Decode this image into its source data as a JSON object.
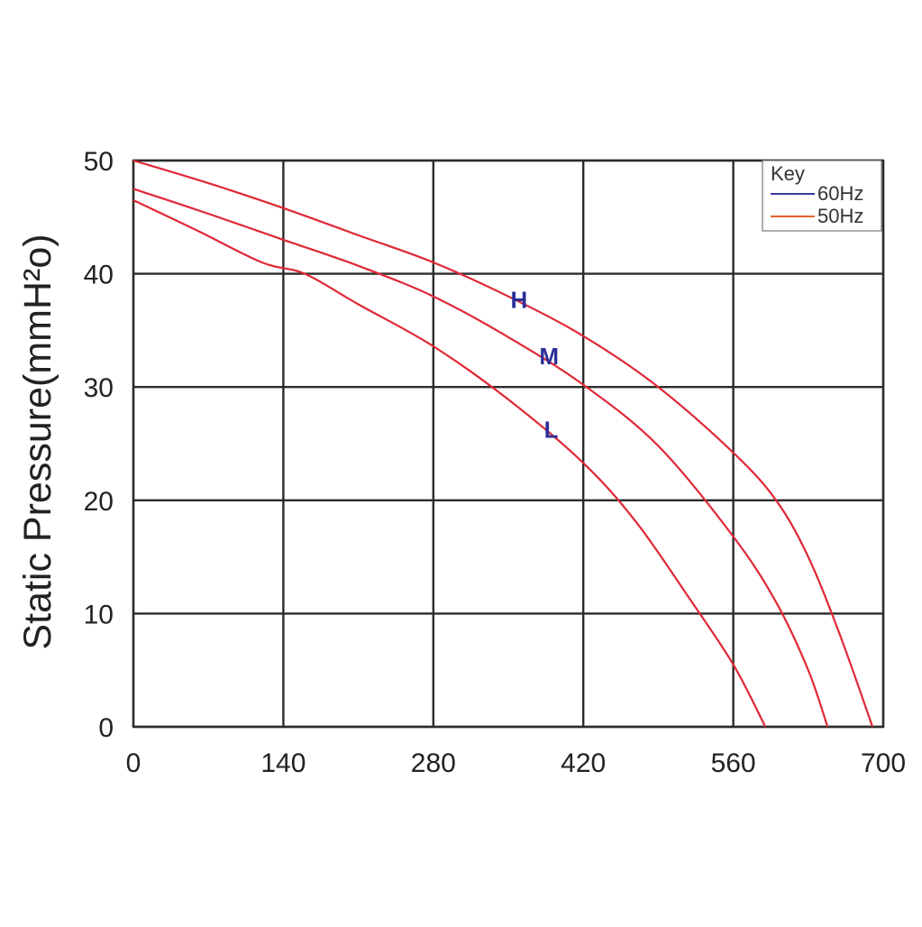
{
  "chart_data": {
    "type": "line",
    "title": "",
    "xlabel": "",
    "ylabel": "Static Pressure(mmH²o)",
    "xlim": [
      0,
      700
    ],
    "ylim": [
      0,
      50
    ],
    "x_ticks": [
      0,
      140,
      280,
      420,
      560,
      700
    ],
    "y_ticks": [
      0,
      10,
      20,
      30,
      40,
      50
    ],
    "grid": true,
    "legend": {
      "title": "Key",
      "placement": "top-right",
      "entries": [
        {
          "name": "60Hz",
          "color": "#3a3a9c"
        },
        {
          "name": "50Hz",
          "color": "#e8622c"
        }
      ]
    },
    "series": [
      {
        "name": "H",
        "color": "#e02836",
        "label_color": "#2e2e99",
        "label_at": [
          360,
          37
        ],
        "points": [
          [
            0,
            50
          ],
          [
            70,
            48
          ],
          [
            140,
            45.8
          ],
          [
            210,
            43.4
          ],
          [
            280,
            41
          ],
          [
            350,
            38
          ],
          [
            420,
            34.5
          ],
          [
            490,
            30
          ],
          [
            560,
            24.2
          ],
          [
            600,
            20
          ],
          [
            630,
            15
          ],
          [
            660,
            8
          ],
          [
            690,
            0
          ]
        ]
      },
      {
        "name": "M",
        "color": "#e02836",
        "label_color": "#2e2e99",
        "label_at": [
          388,
          32
        ],
        "points": [
          [
            0,
            47.5
          ],
          [
            70,
            45.3
          ],
          [
            140,
            43
          ],
          [
            210,
            40.7
          ],
          [
            280,
            38
          ],
          [
            350,
            34.4
          ],
          [
            420,
            30.2
          ],
          [
            490,
            24.8
          ],
          [
            560,
            16.8
          ],
          [
            600,
            11
          ],
          [
            630,
            5
          ],
          [
            648,
            0
          ]
        ]
      },
      {
        "name": "L",
        "color": "#e02836",
        "label_color": "#2e2e99",
        "label_at": [
          390,
          25.5
        ],
        "points": [
          [
            0,
            46.5
          ],
          [
            60,
            43.8
          ],
          [
            120,
            41
          ],
          [
            160,
            40
          ],
          [
            210,
            37.3
          ],
          [
            280,
            33.6
          ],
          [
            350,
            28.9
          ],
          [
            420,
            23.3
          ],
          [
            470,
            18
          ],
          [
            520,
            11.2
          ],
          [
            560,
            5.5
          ],
          [
            590,
            0
          ]
        ]
      }
    ]
  }
}
